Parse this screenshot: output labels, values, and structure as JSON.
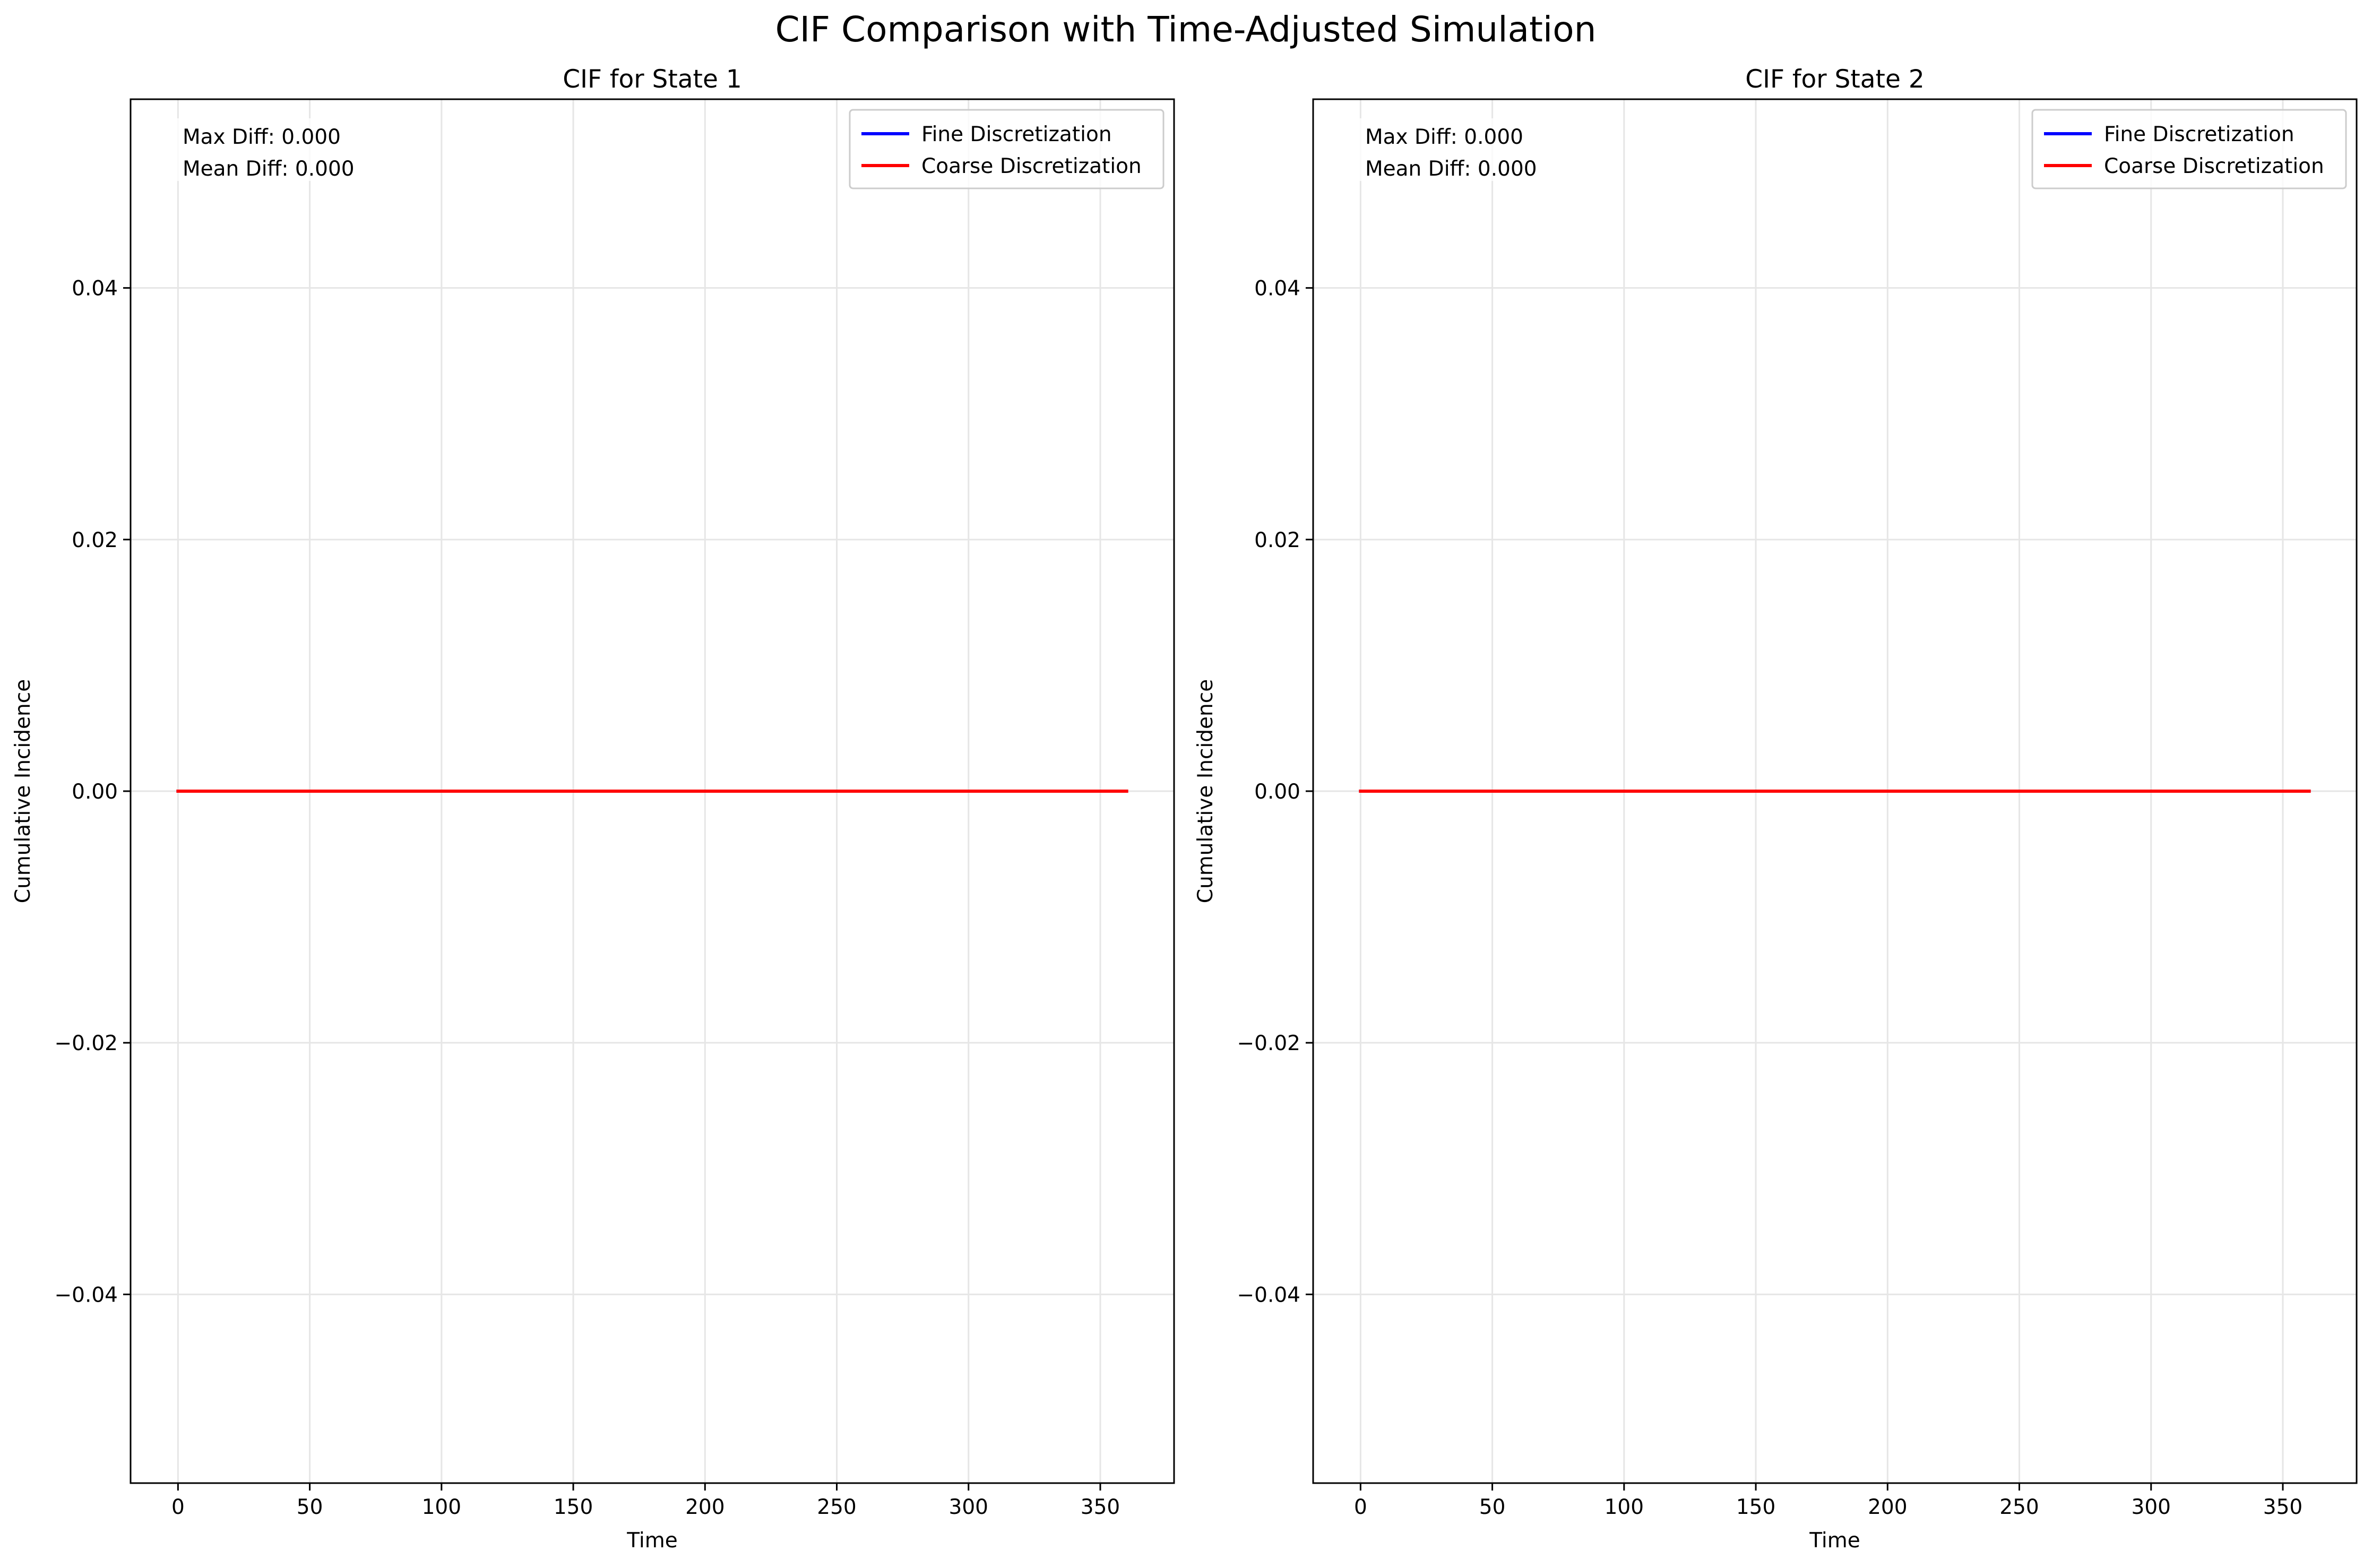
{
  "suptitle": "CIF Comparison with Time-Adjusted Simulation",
  "colors": {
    "fine": "#0000ff",
    "coarse": "#ff0000",
    "grid": "#e6e6e6"
  },
  "chart_data": [
    {
      "type": "line",
      "title": "CIF for State 1",
      "xlabel": "Time",
      "ylabel": "Cumulative Incidence",
      "xlim": [
        -18,
        378
      ],
      "ylim": [
        -0.055,
        0.055
      ],
      "xticks": [
        0,
        50,
        100,
        150,
        200,
        250,
        300,
        350
      ],
      "xtick_labels": [
        "0",
        "50",
        "100",
        "150",
        "200",
        "250",
        "300",
        "350"
      ],
      "yticks": [
        -0.04,
        -0.02,
        0.0,
        0.02,
        0.04
      ],
      "ytick_labels": [
        "−0.04",
        "−0.02",
        "0.00",
        "0.02",
        "0.04"
      ],
      "grid": true,
      "legend_position": "top-right",
      "annotation": [
        "Max Diff: 0.000",
        "Mean Diff: 0.000"
      ],
      "series": [
        {
          "name": "Fine Discretization",
          "color": "#0000ff",
          "x": [
            0,
            360
          ],
          "y": [
            0,
            0
          ]
        },
        {
          "name": "Coarse Discretization",
          "color": "#ff0000",
          "x": [
            0,
            360
          ],
          "y": [
            0,
            0
          ]
        }
      ]
    },
    {
      "type": "line",
      "title": "CIF for State 2",
      "xlabel": "Time",
      "ylabel": "Cumulative Incidence",
      "xlim": [
        -18,
        378
      ],
      "ylim": [
        -0.055,
        0.055
      ],
      "xticks": [
        0,
        50,
        100,
        150,
        200,
        250,
        300,
        350
      ],
      "xtick_labels": [
        "0",
        "50",
        "100",
        "150",
        "200",
        "250",
        "300",
        "350"
      ],
      "yticks": [
        -0.04,
        -0.02,
        0.0,
        0.02,
        0.04
      ],
      "ytick_labels": [
        "−0.04",
        "−0.02",
        "0.00",
        "0.02",
        "0.04"
      ],
      "grid": true,
      "legend_position": "top-right",
      "annotation": [
        "Max Diff: 0.000",
        "Mean Diff: 0.000"
      ],
      "series": [
        {
          "name": "Fine Discretization",
          "color": "#0000ff",
          "x": [
            0,
            360
          ],
          "y": [
            0,
            0
          ]
        },
        {
          "name": "Coarse Discretization",
          "color": "#ff0000",
          "x": [
            0,
            360
          ],
          "y": [
            0,
            0
          ]
        }
      ]
    }
  ]
}
